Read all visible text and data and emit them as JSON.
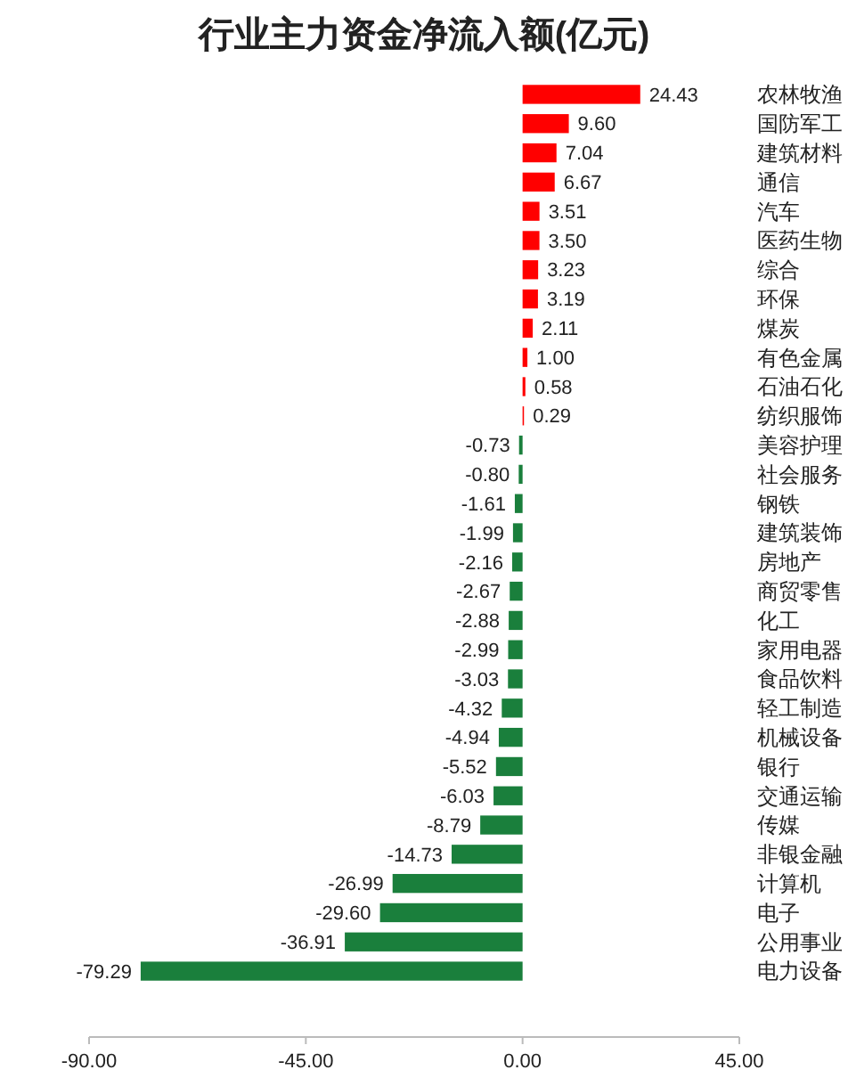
{
  "chart_data": {
    "type": "bar",
    "orientation": "horizontal",
    "title": "行业主力资金净流入额(亿元)",
    "categories": [
      "农林牧渔",
      "国防军工",
      "建筑材料",
      "通信",
      "汽车",
      "医药生物",
      "综合",
      "环保",
      "煤炭",
      "有色金属",
      "石油石化",
      "纺织服饰",
      "美容护理",
      "社会服务",
      "钢铁",
      "建筑装饰",
      "房地产",
      "商贸零售",
      "化工",
      "家用电器",
      "食品饮料",
      "轻工制造",
      "机械设备",
      "银行",
      "交通运输",
      "传媒",
      "非银金融",
      "计算机",
      "电子",
      "公用事业",
      "电力设备"
    ],
    "values": [
      24.43,
      9.6,
      7.04,
      6.67,
      3.51,
      3.5,
      3.23,
      3.19,
      2.11,
      1.0,
      0.58,
      0.29,
      -0.73,
      -0.8,
      -1.61,
      -1.99,
      -2.16,
      -2.67,
      -2.88,
      -2.99,
      -3.03,
      -4.32,
      -4.94,
      -5.52,
      -6.03,
      -8.79,
      -14.73,
      -26.99,
      -29.6,
      -36.91,
      -79.29
    ],
    "value_labels": [
      "24.43",
      "9.60",
      "7.04",
      "6.67",
      "3.51",
      "3.50",
      "3.23",
      "3.19",
      "2.11",
      "1.00",
      "0.58",
      "0.29",
      "-0.73",
      "-0.80",
      "-1.61",
      "-1.99",
      "-2.16",
      "-2.67",
      "-2.88",
      "-2.99",
      "-3.03",
      "-4.32",
      "-4.94",
      "-5.52",
      "-6.03",
      "-8.79",
      "-14.73",
      "-26.99",
      "-29.60",
      "-36.91",
      "-79.29"
    ],
    "colors": [
      "#ff0000",
      "#ff0000",
      "#ff0000",
      "#ff0000",
      "#ff0000",
      "#ff0000",
      "#ff0000",
      "#ff0000",
      "#ff0000",
      "#ff0000",
      "#ff0000",
      "#ff0000",
      "#1a7f3c",
      "#1a7f3c",
      "#1a7f3c",
      "#1a7f3c",
      "#1a7f3c",
      "#1a7f3c",
      "#1a7f3c",
      "#1a7f3c",
      "#1a7f3c",
      "#1a7f3c",
      "#1a7f3c",
      "#1a7f3c",
      "#1a7f3c",
      "#1a7f3c",
      "#1a7f3c",
      "#1a7f3c",
      "#1a7f3c",
      "#1a7f3c",
      "#1a7f3c"
    ],
    "xlim": [
      -90,
      45
    ],
    "xticks": [
      {
        "value": -90,
        "label": "-90.00"
      },
      {
        "value": -45,
        "label": "-45.00"
      },
      {
        "value": 0,
        "label": "0.00"
      },
      {
        "value": 45,
        "label": "45.00"
      }
    ],
    "grid": false
  }
}
